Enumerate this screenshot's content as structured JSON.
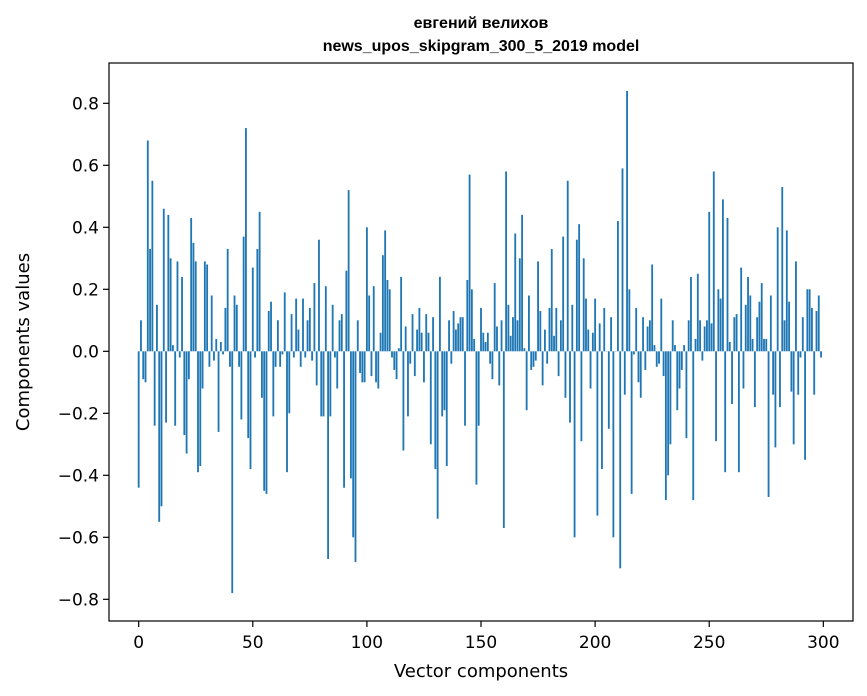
{
  "chart_data": {
    "type": "bar",
    "title_line1": "евгений велихов",
    "title_line2": "news_upos_skipgram_300_5_2019 model",
    "xlabel": "Vector components",
    "ylabel": "Components values",
    "xlim": [
      -13,
      313
    ],
    "ylim": [
      -0.87,
      0.93
    ],
    "xticks": [
      0,
      50,
      100,
      150,
      200,
      250,
      300
    ],
    "xtick_labels": [
      "0",
      "50",
      "100",
      "150",
      "200",
      "250",
      "300"
    ],
    "yticks": [
      -0.8,
      -0.6,
      -0.4,
      -0.2,
      0.0,
      0.2,
      0.4,
      0.6,
      0.8
    ],
    "ytick_labels": [
      "−0.8",
      "−0.6",
      "−0.4",
      "−0.2",
      "0.0",
      "0.2",
      "0.4",
      "0.6",
      "0.8"
    ],
    "bar_color": "#1f77b4",
    "grid": false,
    "x": [
      0,
      1,
      2,
      3,
      4,
      5,
      6,
      7,
      8,
      9,
      10,
      11,
      12,
      13,
      14,
      15,
      16,
      17,
      18,
      19,
      20,
      21,
      22,
      23,
      24,
      25,
      26,
      27,
      28,
      29,
      30,
      31,
      32,
      33,
      34,
      35,
      36,
      37,
      38,
      39,
      40,
      41,
      42,
      43,
      44,
      45,
      46,
      47,
      48,
      49,
      50,
      51,
      52,
      53,
      54,
      55,
      56,
      57,
      58,
      59,
      60,
      61,
      62,
      63,
      64,
      65,
      66,
      67,
      68,
      69,
      70,
      71,
      72,
      73,
      74,
      75,
      76,
      77,
      78,
      79,
      80,
      81,
      82,
      83,
      84,
      85,
      86,
      87,
      88,
      89,
      90,
      91,
      92,
      93,
      94,
      95,
      96,
      97,
      98,
      99,
      100,
      101,
      102,
      103,
      104,
      105,
      106,
      107,
      108,
      109,
      110,
      111,
      112,
      113,
      114,
      115,
      116,
      117,
      118,
      119,
      120,
      121,
      122,
      123,
      124,
      125,
      126,
      127,
      128,
      129,
      130,
      131,
      132,
      133,
      134,
      135,
      136,
      137,
      138,
      139,
      140,
      141,
      142,
      143,
      144,
      145,
      146,
      147,
      148,
      149,
      150,
      151,
      152,
      153,
      154,
      155,
      156,
      157,
      158,
      159,
      160,
      161,
      162,
      163,
      164,
      165,
      166,
      167,
      168,
      169,
      170,
      171,
      172,
      173,
      174,
      175,
      176,
      177,
      178,
      179,
      180,
      181,
      182,
      183,
      184,
      185,
      186,
      187,
      188,
      189,
      190,
      191,
      192,
      193,
      194,
      195,
      196,
      197,
      198,
      199,
      200,
      201,
      202,
      203,
      204,
      205,
      206,
      207,
      208,
      209,
      210,
      211,
      212,
      213,
      214,
      215,
      216,
      217,
      218,
      219,
      220,
      221,
      222,
      223,
      224,
      225,
      226,
      227,
      228,
      229,
      230,
      231,
      232,
      233,
      234,
      235,
      236,
      237,
      238,
      239,
      240,
      241,
      242,
      243,
      244,
      245,
      246,
      247,
      248,
      249,
      250,
      251,
      252,
      253,
      254,
      255,
      256,
      257,
      258,
      259,
      260,
      261,
      262,
      263,
      264,
      265,
      266,
      267,
      268,
      269,
      270,
      271,
      272,
      273,
      274,
      275,
      276,
      277,
      278,
      279,
      280,
      281,
      282,
      283,
      284,
      285,
      286,
      287,
      288,
      289,
      290,
      291,
      292,
      293,
      294,
      295,
      296,
      297,
      298,
      299
    ],
    "values": [
      -0.44,
      0.1,
      -0.09,
      -0.1,
      0.68,
      0.33,
      0.55,
      -0.24,
      0.15,
      -0.55,
      -0.5,
      0.46,
      -0.23,
      0.44,
      0.3,
      0.02,
      -0.24,
      0.29,
      -0.02,
      0.24,
      -0.27,
      -0.33,
      -0.09,
      0.43,
      0.35,
      0.29,
      -0.39,
      -0.37,
      -0.12,
      0.29,
      0.28,
      -0.05,
      0.18,
      -0.03,
      0.04,
      -0.26,
      0.03,
      -0.01,
      0.14,
      0.33,
      -0.05,
      -0.78,
      0.18,
      0.15,
      -0.05,
      -0.22,
      0.37,
      0.72,
      -0.28,
      -0.38,
      0.27,
      -0.02,
      0.33,
      0.45,
      -0.15,
      -0.45,
      -0.46,
      0.13,
      0.16,
      -0.21,
      -0.05,
      0.1,
      -0.05,
      -0.01,
      0.19,
      -0.39,
      -0.2,
      0.12,
      -0.02,
      0.17,
      0.07,
      -0.05,
      0.17,
      -0.02,
      0.1,
      0.14,
      -0.03,
      0.22,
      -0.11,
      0.36,
      -0.21,
      -0.21,
      0.21,
      -0.67,
      -0.21,
      0.15,
      -0.02,
      -0.12,
      0.1,
      0.12,
      -0.44,
      0.26,
      0.52,
      -0.41,
      -0.6,
      -0.68,
      0.1,
      -0.07,
      -0.1,
      -0.1,
      0.4,
      0.18,
      -0.08,
      0.21,
      -0.1,
      -0.12,
      0.06,
      0.31,
      0.39,
      0.23,
      0.2,
      -0.02,
      -0.06,
      -0.09,
      0.01,
      0.24,
      -0.32,
      0.08,
      -0.21,
      -0.04,
      0.12,
      -0.08,
      0.07,
      0.14,
      0.06,
      -0.1,
      0.12,
      0.06,
      -0.3,
      0.11,
      -0.38,
      -0.54,
      0.24,
      -0.21,
      -0.19,
      -0.37,
      0.1,
      -0.04,
      0.13,
      0.07,
      0.09,
      0.11,
      0.11,
      -0.24,
      0.23,
      0.57,
      0.2,
      0.04,
      -0.43,
      -0.24,
      0.14,
      0.06,
      0.03,
      0.06,
      -0.04,
      -0.09,
      0.22,
      0.08,
      -0.11,
      0.1,
      -0.57,
      0.58,
      0.15,
      0.05,
      0.11,
      0.38,
      0.1,
      0.3,
      0.44,
      0.01,
      -0.19,
      0.18,
      -0.06,
      -0.05,
      -0.03,
      0.29,
      0.13,
      -0.11,
      0.07,
      -0.04,
      0.14,
      0.33,
      0.05,
      0.14,
      -0.08,
      0.1,
      0.37,
      -0.15,
      0.55,
      -0.23,
      0.15,
      -0.6,
      0.36,
      0.41,
      -0.29,
      0.3,
      0.17,
      0.07,
      -0.12,
      0.06,
      0.17,
      -0.53,
      0.09,
      -0.38,
      0.14,
      0.0,
      -0.25,
      0.11,
      -0.6,
      0.0,
      0.42,
      -0.7,
      0.59,
      -0.14,
      0.84,
      0.2,
      -0.46,
      -0.01,
      0.14,
      -0.1,
      -0.15,
      0.11,
      -0.06,
      0.08,
      0.1,
      0.28,
      0.02,
      -0.05,
      -0.04,
      0.17,
      -0.08,
      -0.48,
      -0.4,
      -0.3,
      0.1,
      0.02,
      -0.19,
      -0.12,
      -0.06,
      0.02,
      -0.28,
      0.1,
      0.24,
      -0.48,
      0.04,
      0.25,
      0.1,
      -0.03,
      0.08,
      0.1,
      0.45,
      0.09,
      0.58,
      -0.29,
      0.2,
      0.17,
      0.49,
      -0.39,
      0.43,
      0.03,
      -0.17,
      0.11,
      0.12,
      -0.39,
      0.27,
      -0.12,
      0.15,
      0.24,
      0.18,
      0.04,
      -0.18,
      0.11,
      0.16,
      0.22,
      0.04,
      0.04,
      -0.47,
      0.18,
      -0.14,
      -0.31,
      0.4,
      -0.18,
      0.53,
      0.1,
      0.39,
      0.16,
      -0.13,
      -0.3,
      0.29,
      -0.14,
      -0.02,
      0.11,
      -0.35,
      0.2,
      0.2,
      0.14,
      -0.14,
      0.13,
      0.18,
      -0.02
    ]
  }
}
